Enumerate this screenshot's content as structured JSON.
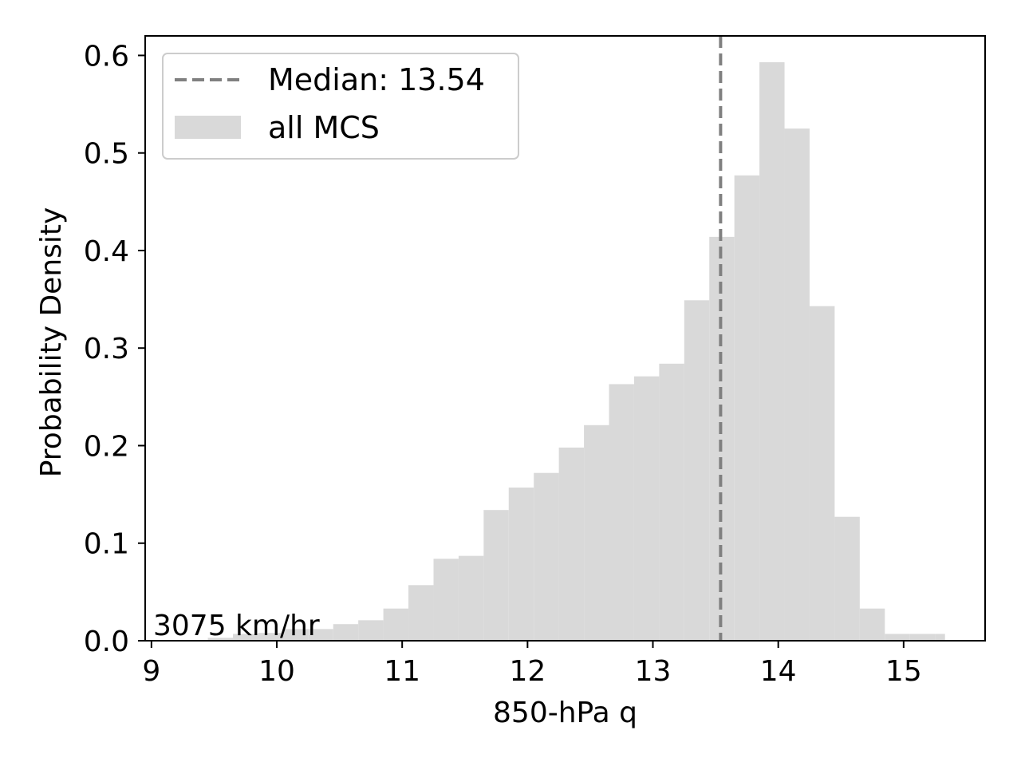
{
  "chart_data": {
    "type": "bar",
    "subtype": "histogram",
    "xlabel": "850-hPa q",
    "ylabel": "Probability Density",
    "xlim": [
      8.95,
      15.65
    ],
    "ylim": [
      0.0,
      0.62
    ],
    "xticks": [
      9,
      10,
      11,
      12,
      13,
      14,
      15
    ],
    "xtick_labels": [
      "9",
      "10",
      "11",
      "12",
      "13",
      "14",
      "15"
    ],
    "yticks": [
      0.0,
      0.1,
      0.2,
      0.3,
      0.4,
      0.5,
      0.6
    ],
    "ytick_labels": [
      "0.0",
      "0.1",
      "0.2",
      "0.3",
      "0.4",
      "0.5",
      "0.6"
    ],
    "grid": false,
    "legend_position": "upper-left",
    "series": [
      {
        "name": "all MCS",
        "color": "#d9d9d9",
        "bin_edges": [
          9.45,
          9.65,
          9.85,
          10.05,
          10.25,
          10.45,
          10.65,
          10.85,
          11.05,
          11.25,
          11.45,
          11.65,
          11.85,
          12.05,
          12.25,
          12.45,
          12.65,
          12.85,
          13.05,
          13.25,
          13.45,
          13.65,
          13.85,
          14.05,
          14.25,
          14.45,
          14.65,
          14.85,
          15.05,
          15.25,
          15.33
        ],
        "values": [
          0.003,
          0.007,
          0.008,
          0.012,
          0.012,
          0.017,
          0.021,
          0.033,
          0.057,
          0.084,
          0.087,
          0.134,
          0.157,
          0.172,
          0.198,
          0.221,
          0.263,
          0.271,
          0.284,
          0.349,
          0.414,
          0.477,
          0.593,
          0.525,
          0.343,
          0.127,
          0.033,
          0.007,
          0.007,
          0.007
        ]
      }
    ],
    "median": {
      "label": "Median: 13.54",
      "value": 13.54,
      "color": "#808080",
      "style": "dashed"
    },
    "annotation": "3075 km/hr",
    "legend": [
      {
        "label": "Median: 13.54",
        "kind": "dashed-line",
        "color": "#808080"
      },
      {
        "label": "all MCS",
        "kind": "patch",
        "color": "#d9d9d9"
      }
    ]
  }
}
